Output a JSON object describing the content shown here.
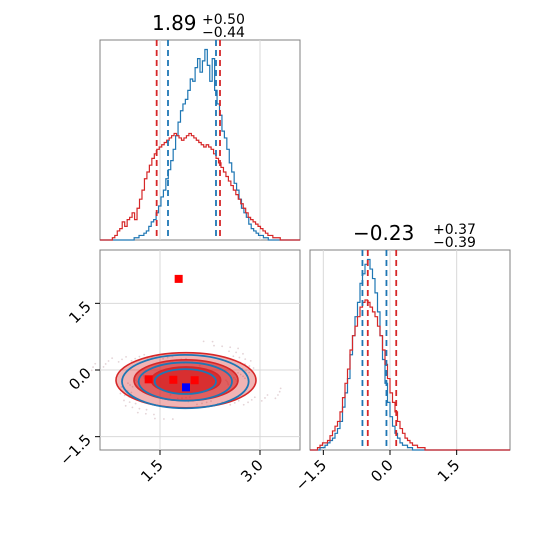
{
  "chart_data": {
    "type": "corner",
    "colors": {
      "blue": "#1f77b4",
      "red": "#d62728",
      "marker_blue": "#0000ff",
      "marker_red": "#ff0000",
      "grid": "#d9d9d9"
    },
    "panels": [
      {
        "id": "top-left",
        "type": "histogram",
        "title": {
          "value": "1.89",
          "upper": "+0.50",
          "lower": "−0.44"
        },
        "xlim": [
          0.6,
          3.6
        ],
        "xticks": [],
        "series": [
          {
            "color": "blue",
            "bins_x": [
              0.6,
              3.6
            ],
            "counts": [
              0,
              0,
              0,
              0,
              0,
              0,
              0,
              0,
              0,
              0,
              0,
              0,
              0,
              0,
              1,
              1,
              2,
              2,
              3,
              4,
              6,
              8,
              9,
              12,
              15,
              19,
              22,
              27,
              31,
              35,
              40,
              46,
              52,
              57,
              60,
              62,
              66,
              71,
              70,
              76,
              80,
              74,
              79,
              84,
              77,
              70,
              80,
              66,
              60,
              55,
              48,
              45,
              40,
              34,
              30,
              25,
              22,
              18,
              14,
              12,
              10,
              7,
              5,
              4,
              3,
              2,
              2,
              1,
              1,
              0,
              0,
              0,
              0,
              0,
              0,
              0,
              0,
              0,
              0,
              0,
              0,
              0
            ]
          },
          {
            "color": "red",
            "bins_x": [
              0.6,
              3.6
            ],
            "counts": [
              0,
              0,
              0,
              0,
              0,
              1,
              2,
              4,
              5,
              8,
              6,
              9,
              10,
              12,
              9,
              14,
              18,
              22,
              27,
              30,
              33,
              36,
              38,
              40,
              41,
              42,
              43,
              44,
              45,
              46,
              47,
              46,
              45,
              44,
              45,
              46,
              47,
              46,
              45,
              44,
              43,
              42,
              41,
              42,
              41,
              40,
              38,
              36,
              34,
              32,
              30,
              28,
              26,
              24,
              22,
              20,
              18,
              16,
              14,
              12,
              10,
              9,
              8,
              7,
              6,
              5,
              4,
              3,
              2,
              2,
              1,
              1,
              1,
              0,
              0,
              0,
              0,
              0,
              0,
              0,
              0
            ]
          }
        ],
        "vlines": [
          {
            "color": "red",
            "x": 1.45
          },
          {
            "color": "blue",
            "x": 1.62
          },
          {
            "color": "blue",
            "x": 2.34
          },
          {
            "color": "red",
            "x": 2.4
          }
        ],
        "grid": true
      },
      {
        "id": "bottom-left",
        "type": "2d-contour",
        "xlim": [
          0.6,
          3.6
        ],
        "ylim": [
          -1.8,
          2.7
        ],
        "xticks": [
          1.5,
          3.0
        ],
        "xtick_labels": [
          "1.5",
          "3.0"
        ],
        "yticks": [
          -1.5,
          0.0,
          1.5
        ],
        "ytick_labels": [
          "−1.5",
          "0.0",
          "1.5"
        ],
        "contours": [
          {
            "color": "red",
            "center": [
              1.89,
              -0.23
            ],
            "radii": [
              [
                1.05,
                0.62
              ],
              [
                0.78,
                0.46
              ],
              [
                0.52,
                0.3
              ]
            ]
          },
          {
            "color": "blue",
            "center": [
              1.88,
              -0.26
            ],
            "radii": [
              [
                0.95,
                0.6
              ],
              [
                0.7,
                0.43
              ],
              [
                0.46,
                0.28
              ]
            ]
          }
        ],
        "markers": [
          {
            "color": "marker_red",
            "x": 1.78,
            "y": 2.05
          },
          {
            "color": "marker_red",
            "x": 1.33,
            "y": -0.21
          },
          {
            "color": "marker_red",
            "x": 1.7,
            "y": -0.22
          },
          {
            "color": "marker_red",
            "x": 2.02,
            "y": -0.23
          },
          {
            "color": "marker_blue",
            "x": 1.89,
            "y": -0.39
          }
        ],
        "grid": true
      },
      {
        "id": "bottom-right",
        "type": "histogram",
        "title": {
          "value": "−0.23",
          "upper": "+0.37",
          "lower": "−0.39"
        },
        "xlim": [
          -1.8,
          2.7
        ],
        "xticks": [
          -1.5,
          0.0,
          1.5
        ],
        "xtick_labels": [
          "−1.5",
          "0.0",
          "1.5"
        ],
        "series": [
          {
            "color": "blue",
            "bins_x": [
              -1.8,
              2.7
            ],
            "counts": [
              0,
              0,
              0,
              0,
              1,
              1,
              2,
              3,
              4,
              5,
              7,
              9,
              12,
              18,
              24,
              30,
              40,
              48,
              56,
              62,
              70,
              74,
              78,
              80,
              76,
              72,
              66,
              58,
              48,
              38,
              28,
              20,
              14,
              10,
              7,
              5,
              3,
              2,
              2,
              1,
              1,
              0,
              0,
              0,
              0,
              0,
              0,
              0,
              0,
              0,
              0,
              0,
              0,
              0,
              0,
              0,
              0,
              0,
              0,
              0,
              0,
              0,
              0,
              0,
              0,
              0,
              0,
              0,
              0,
              0,
              0,
              0,
              0,
              0,
              0,
              0,
              0,
              0,
              0,
              0
            ]
          },
          {
            "color": "red",
            "bins_x": [
              -1.8,
              2.7
            ],
            "counts": [
              0,
              0,
              0,
              1,
              2,
              3,
              3,
              4,
              6,
              8,
              10,
              12,
              16,
              22,
              28,
              34,
              42,
              48,
              52,
              56,
              60,
              62,
              63,
              62,
              60,
              58,
              56,
              52,
              48,
              42,
              36,
              30,
              24,
              20,
              16,
              12,
              9,
              7,
              5,
              4,
              3,
              2,
              2,
              1,
              1,
              1,
              0,
              0,
              0,
              0,
              0,
              0,
              0,
              0,
              0,
              0,
              0,
              0,
              0,
              0,
              0,
              0,
              0,
              0,
              0,
              0,
              0,
              0,
              0,
              0,
              0,
              0,
              0,
              0,
              0,
              0,
              0,
              0,
              0,
              0
            ]
          }
        ],
        "vlines": [
          {
            "color": "blue",
            "x": -0.62
          },
          {
            "color": "red",
            "x": -0.5
          },
          {
            "color": "blue",
            "x": -0.08
          },
          {
            "color": "red",
            "x": 0.14
          }
        ],
        "grid": true
      }
    ]
  }
}
